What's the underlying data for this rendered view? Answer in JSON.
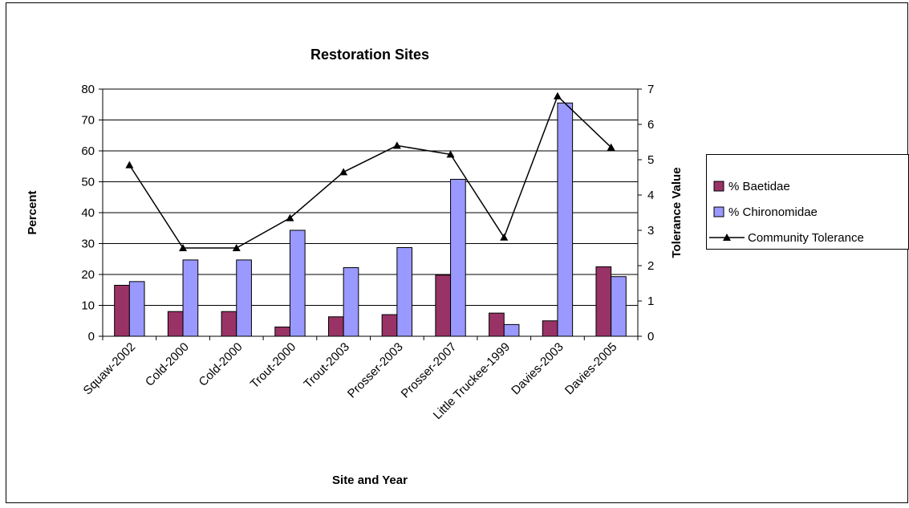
{
  "chart_data": {
    "type": "bar",
    "title": "Restoration Sites",
    "x_label": "Site and Year",
    "y_label": "Percent",
    "y2_label": "Tolerance Value",
    "categories": [
      "Squaw-2002",
      "Cold-2000",
      "Cold-2000",
      "Trout-2000",
      "Trout-2003",
      "Prosser-2003",
      "Prosser-2007",
      "Little Truckee-1999",
      "Davies-2003",
      "Davies-2005"
    ],
    "series": [
      {
        "name": "% Baetidae",
        "color": "#993366",
        "type": "bar",
        "values": [
          16.5,
          8,
          8,
          3,
          6.3,
          7,
          19.8,
          7.5,
          5,
          22.5
        ]
      },
      {
        "name": "% Chironomidae",
        "color": "#9999ff",
        "type": "bar",
        "values": [
          17.7,
          24.7,
          24.7,
          34.3,
          22.2,
          28.7,
          50.8,
          3.8,
          75.5,
          19.3
        ]
      },
      {
        "name": "Community Tolerance",
        "color": "#000000",
        "type": "line",
        "axis": "y2",
        "values": [
          4.85,
          2.5,
          2.5,
          3.35,
          4.65,
          5.4,
          5.15,
          2.8,
          6.8,
          5.35
        ]
      }
    ],
    "ylim": [
      0,
      80
    ],
    "yticks": [
      0,
      10,
      20,
      30,
      40,
      50,
      60,
      70,
      80
    ],
    "y2lim": [
      0,
      7
    ],
    "y2ticks": [
      0,
      1,
      2,
      3,
      4,
      5,
      6,
      7
    ],
    "grid": true,
    "legend": "right"
  }
}
